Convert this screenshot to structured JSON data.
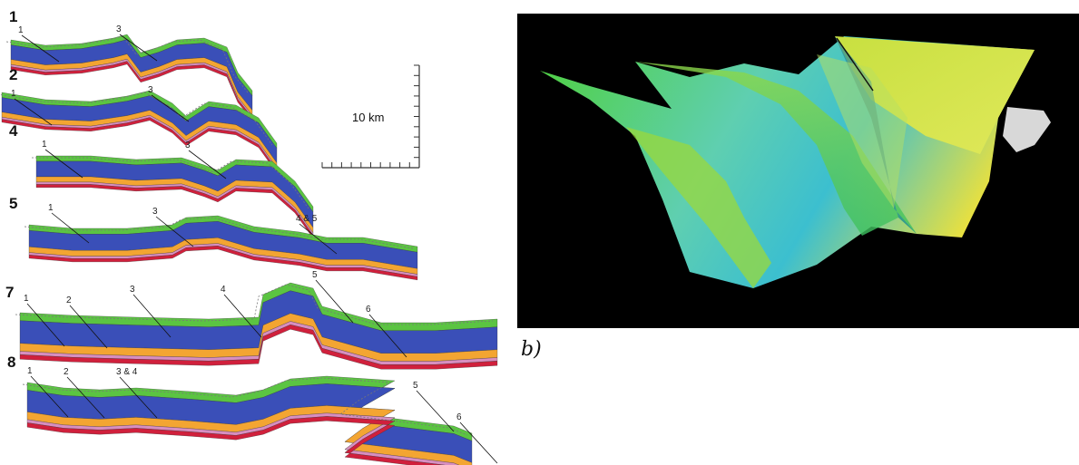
{
  "sections": [
    {
      "label": "1",
      "faults": [
        "1",
        "3"
      ]
    },
    {
      "label": "2",
      "faults": [
        "1",
        "3"
      ]
    },
    {
      "label": "4",
      "faults": [
        "1",
        "3"
      ]
    },
    {
      "label": "5",
      "faults": [
        "1",
        "3",
        "4 & 5"
      ]
    },
    {
      "label": "7",
      "faults": [
        "1",
        "2",
        "3",
        "4",
        "5",
        "6"
      ]
    },
    {
      "label": "8",
      "faults": [
        "1",
        "2",
        "3 & 4",
        "5",
        "6"
      ]
    }
  ],
  "scale_bar": {
    "label": "10 km"
  },
  "panel_b": {
    "caption": "b)"
  }
}
